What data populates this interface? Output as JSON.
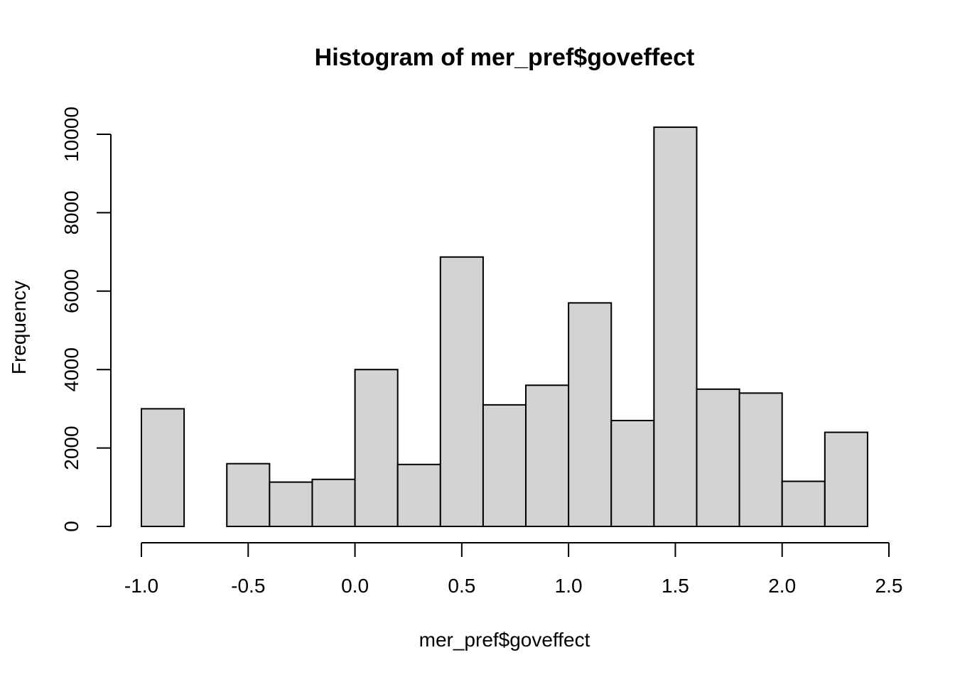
{
  "chart_data": {
    "type": "bar",
    "title": "Histogram of mer_pref$goveffect",
    "xlabel": "mer_pref$goveffect",
    "ylabel": "Frequency",
    "bin_edges": [
      -1.0,
      -0.8,
      -0.6,
      -0.4,
      -0.2,
      0.0,
      0.2,
      0.4,
      0.6,
      0.8,
      1.0,
      1.2,
      1.4,
      1.6,
      1.8,
      2.0,
      2.2,
      2.4
    ],
    "values": [
      3000,
      0,
      1600,
      1130,
      1200,
      4000,
      1580,
      6870,
      3100,
      3600,
      5700,
      2700,
      10180,
      3500,
      3400,
      1150,
      2400
    ],
    "xlim": [
      -1.0,
      2.5
    ],
    "ylim": [
      0,
      10000
    ],
    "x_ticks": [
      -1.0,
      -0.5,
      0.0,
      0.5,
      1.0,
      1.5,
      2.0,
      2.5
    ],
    "x_tick_labels": [
      "-1.0",
      "-0.5",
      "0.0",
      "0.5",
      "1.0",
      "1.5",
      "2.0",
      "2.5"
    ],
    "y_ticks": [
      0,
      2000,
      4000,
      6000,
      8000,
      10000
    ],
    "y_tick_labels": [
      "0",
      "2000",
      "4000",
      "6000",
      "8000",
      "10000"
    ],
    "bar_color": "#d3d3d3",
    "grid": false,
    "legend": "none"
  }
}
